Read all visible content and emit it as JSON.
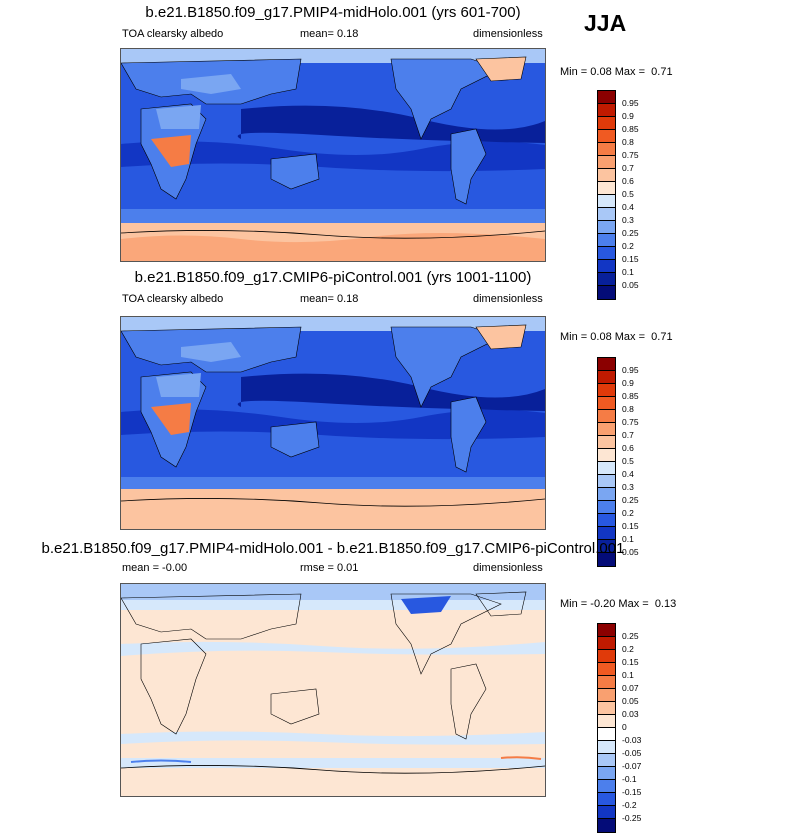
{
  "season": "JJA",
  "panels": [
    {
      "title": "b.e21.B1850.f09_g17.PMIP4-midHolo.001 (yrs 601-700)",
      "left": "TOA clearsky albedo",
      "center": "mean=   0.18",
      "right": "dimensionless",
      "min_label": "Min =",
      "min_value": "0.08",
      "max_label": "Max =",
      "max_value": "0.71",
      "type": "absolute"
    },
    {
      "title": "b.e21.B1850.f09_g17.CMIP6-piControl.001 (yrs 1001-1100)",
      "left": "TOA clearsky albedo",
      "center": "mean=   0.18",
      "right": "dimensionless",
      "min_label": "Min =",
      "min_value": "0.08",
      "max_label": "Max =",
      "max_value": "0.71",
      "type": "absolute"
    },
    {
      "title": "b.e21.B1850.f09_g17.PMIP4-midHolo.001 - b.e21.B1850.f09_g17.CMIP6-piControl.001",
      "left": "mean =   -0.00",
      "center": "rmse =   0.01",
      "right": "dimensionless",
      "min_label": "Min =",
      "min_value": "-0.20",
      "max_label": "Max =",
      "max_value": "0.13",
      "type": "difference"
    }
  ],
  "colorbar_abs": {
    "labels": [
      "0.95",
      "0.9",
      "0.85",
      "0.8",
      "0.75",
      "0.7",
      "0.6",
      "0.5",
      "0.4",
      "0.3",
      "0.25",
      "0.2",
      "0.15",
      "0.1",
      "0.05"
    ],
    "colors": [
      "#8b0000",
      "#c01a00",
      "#e03a0a",
      "#f05a22",
      "#f57c45",
      "#f9a070",
      "#fcc4a0",
      "#fde6d3",
      "#d6e8fb",
      "#a9c8f7",
      "#7aa6f2",
      "#4c7fec",
      "#2858e0",
      "#1236c4",
      "#08209a",
      "#040c78"
    ]
  },
  "colorbar_diff": {
    "labels": [
      "0.25",
      "0.2",
      "0.15",
      "0.1",
      "0.07",
      "0.05",
      "0.03",
      "0",
      "-0.03",
      "-0.05",
      "-0.07",
      "-0.1",
      "-0.15",
      "-0.2",
      "-0.25"
    ],
    "colors": [
      "#8b0000",
      "#c01a00",
      "#e03a0a",
      "#f05a22",
      "#f57c45",
      "#f9a070",
      "#fcc4a0",
      "#fde6d3",
      "#ffffff",
      "#d6e8fb",
      "#a9c8f7",
      "#7aa6f2",
      "#4c7fec",
      "#2858e0",
      "#1236c4",
      "#040c78"
    ]
  }
}
